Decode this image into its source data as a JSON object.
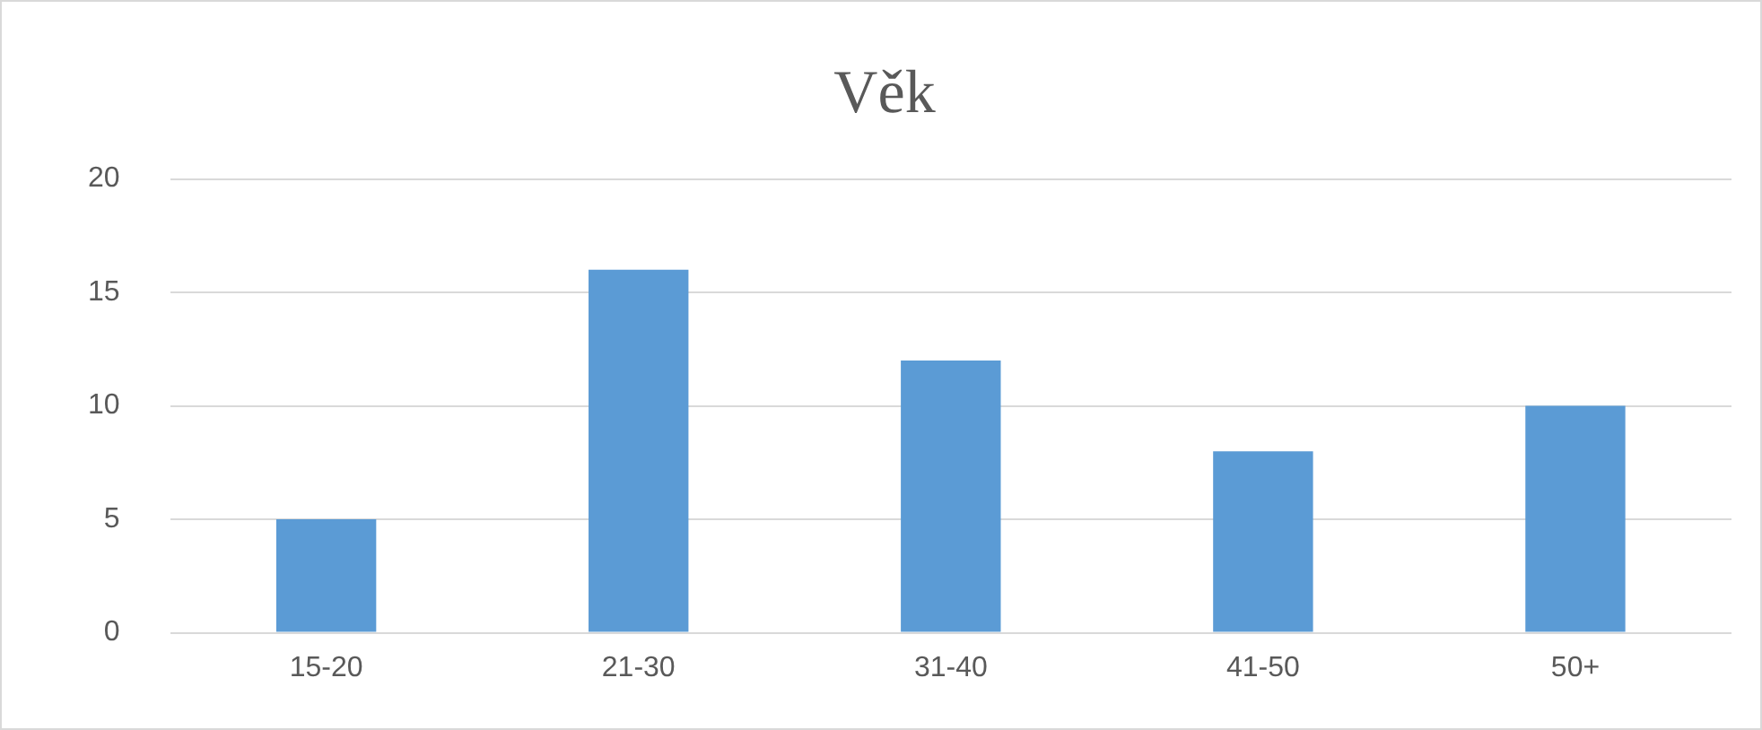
{
  "chart_data": {
    "type": "bar",
    "title": "Věk",
    "categories": [
      "15-20",
      "21-30",
      "31-40",
      "41-50",
      "50+"
    ],
    "values": [
      5,
      16,
      12,
      8,
      10
    ],
    "color": "#5b9bd5",
    "ylim": [
      0,
      20
    ],
    "yticks": [
      0,
      5,
      10,
      15,
      20
    ],
    "grid": "y",
    "legend": false
  }
}
